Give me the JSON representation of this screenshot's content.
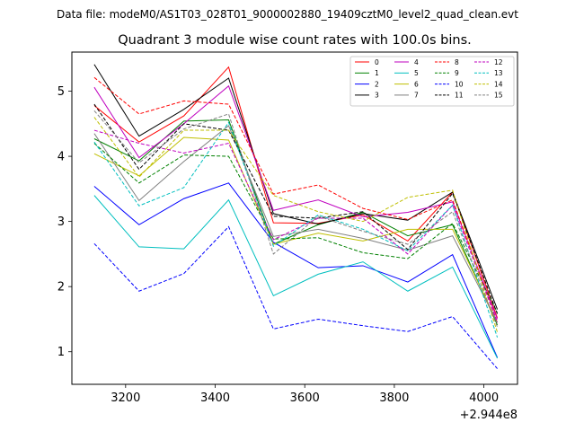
{
  "suptitle": "Data file: modeM0/AS1T03_028T01_9000002880_19409cztM0_level2_quad_clean.evt",
  "chart_data": {
    "type": "line",
    "title": "Quadrant 3 module wise count rates with 100.0s bins.",
    "xlabel": "",
    "ylabel": "",
    "x_offset_label": "+2.944e8",
    "xlim": [
      3080,
      4075
    ],
    "ylim": [
      0.5,
      5.6
    ],
    "x_ticks": [
      3200,
      3400,
      3600,
      3800,
      4000
    ],
    "x_tick_labels": [
      "3200",
      "3400",
      "3600",
      "3800",
      "4000"
    ],
    "y_ticks": [
      1,
      2,
      3,
      4,
      5
    ],
    "y_tick_labels": [
      "1",
      "2",
      "3",
      "4",
      "5"
    ],
    "legend_position": "top-right",
    "x": [
      3130,
      3230,
      3330,
      3430,
      3530,
      3630,
      3730,
      3830,
      3930,
      4030
    ],
    "series": [
      {
        "name": "0",
        "color": "#ff0000",
        "dash": "solid",
        "values": [
          4.78,
          4.22,
          4.62,
          5.37,
          2.98,
          2.97,
          3.1,
          2.7,
          3.45,
          1.52
        ]
      },
      {
        "name": "1",
        "color": "#008000",
        "dash": "solid",
        "values": [
          4.27,
          3.93,
          4.54,
          4.56,
          2.65,
          2.95,
          3.14,
          2.78,
          2.95,
          1.41
        ]
      },
      {
        "name": "2",
        "color": "#0000ff",
        "dash": "solid",
        "values": [
          3.54,
          2.95,
          3.35,
          3.59,
          2.68,
          2.29,
          2.32,
          2.07,
          2.49,
          0.91
        ]
      },
      {
        "name": "3",
        "color": "#000000",
        "dash": "solid",
        "values": [
          5.41,
          4.31,
          4.72,
          5.2,
          3.12,
          2.96,
          3.12,
          3.02,
          3.45,
          1.65
        ]
      },
      {
        "name": "4",
        "color": "#bf00bf",
        "dash": "solid",
        "values": [
          5.06,
          3.98,
          4.5,
          5.08,
          3.17,
          3.33,
          3.07,
          3.14,
          3.3,
          1.5
        ]
      },
      {
        "name": "5",
        "color": "#00bfbf",
        "dash": "solid",
        "values": [
          3.4,
          2.61,
          2.58,
          3.33,
          1.86,
          2.19,
          2.38,
          1.93,
          2.3,
          0.9
        ]
      },
      {
        "name": "6",
        "color": "#bfbf00",
        "dash": "solid",
        "values": [
          4.04,
          3.7,
          4.29,
          4.25,
          2.65,
          2.82,
          2.7,
          2.88,
          2.88,
          1.45
        ]
      },
      {
        "name": "7",
        "color": "#808080",
        "dash": "solid",
        "values": [
          4.35,
          3.32,
          3.92,
          4.47,
          2.77,
          2.88,
          2.74,
          2.56,
          2.78,
          1.45
        ]
      },
      {
        "name": "8",
        "color": "#ff0000",
        "dash": "dashed",
        "values": [
          5.21,
          4.65,
          4.85,
          4.8,
          3.42,
          3.56,
          3.2,
          3.03,
          3.33,
          1.45
        ]
      },
      {
        "name": "9",
        "color": "#008000",
        "dash": "dashed",
        "values": [
          4.2,
          3.59,
          4.02,
          4.0,
          2.73,
          2.75,
          2.52,
          2.43,
          2.97,
          1.6
        ]
      },
      {
        "name": "10",
        "color": "#0000ff",
        "dash": "dashed",
        "values": [
          2.66,
          1.93,
          2.2,
          2.92,
          1.35,
          1.5,
          1.4,
          1.31,
          1.54,
          0.74
        ]
      },
      {
        "name": "11",
        "color": "#000000",
        "dash": "dashed",
        "values": [
          4.8,
          3.8,
          4.5,
          4.4,
          3.08,
          3.05,
          3.15,
          2.57,
          3.43,
          1.58
        ]
      },
      {
        "name": "12",
        "color": "#bf00bf",
        "dash": "dashed",
        "values": [
          4.4,
          4.2,
          4.05,
          4.2,
          2.72,
          3.05,
          3.05,
          2.5,
          3.25,
          1.45
        ]
      },
      {
        "name": "13",
        "color": "#00bfbf",
        "dash": "dashed",
        "values": [
          4.22,
          3.24,
          3.52,
          4.52,
          2.62,
          3.1,
          2.88,
          2.55,
          3.25,
          1.22
        ]
      },
      {
        "name": "14",
        "color": "#bfbf00",
        "dash": "dashed",
        "values": [
          4.6,
          3.68,
          4.4,
          4.4,
          3.4,
          3.15,
          3.0,
          3.37,
          3.48,
          1.3
        ]
      },
      {
        "name": "15",
        "color": "#808080",
        "dash": "dashed",
        "values": [
          4.7,
          3.9,
          4.42,
          4.65,
          2.5,
          3.08,
          2.85,
          2.65,
          3.15,
          1.38
        ]
      }
    ]
  }
}
